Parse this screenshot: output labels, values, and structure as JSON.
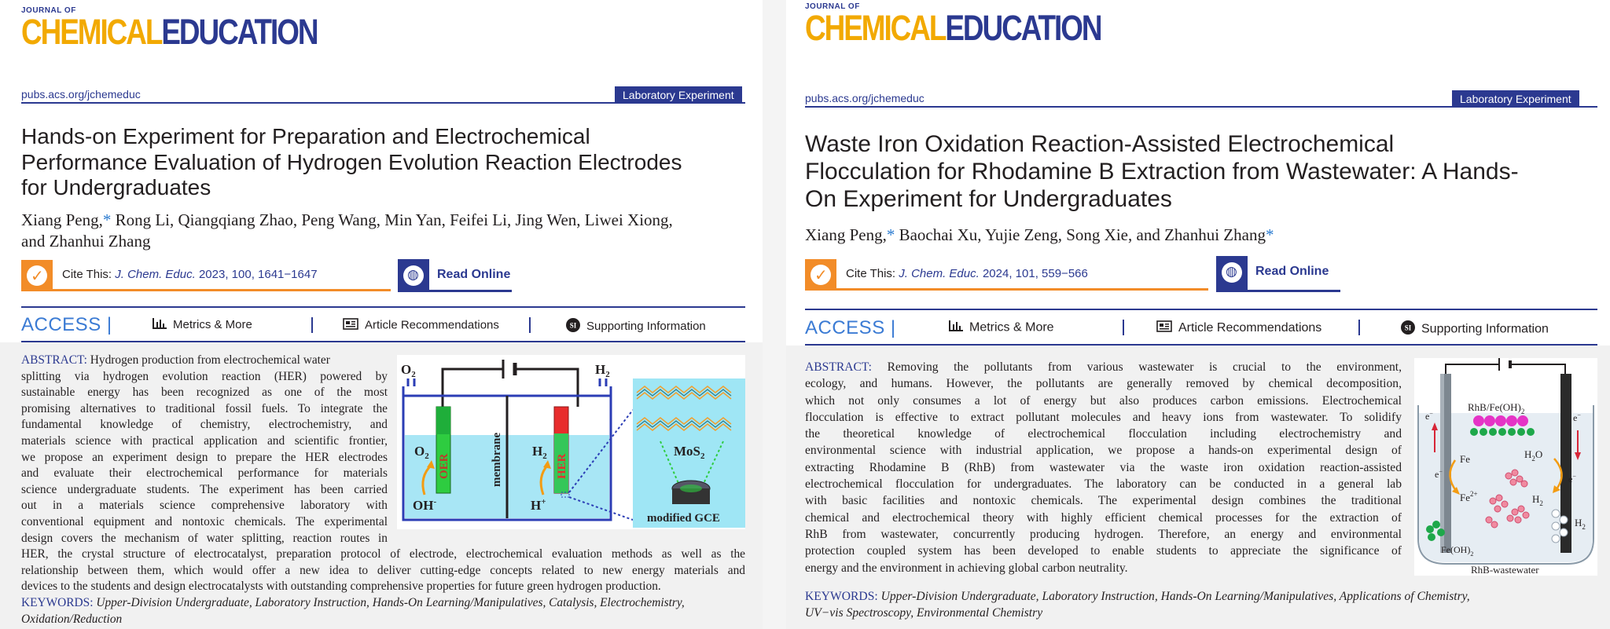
{
  "left": {
    "journal_small": "JOURNAL OF",
    "journal_chem": "CHEMICAL",
    "journal_edu": "EDUCATION",
    "url": "pubs.acs.org/jchemeduc",
    "badge": "Laboratory Experiment",
    "title_lines": [
      "Hands-on Experiment for Preparation and Electrochemical",
      "Performance Evaluation of Hydrogen Evolution Reaction Electrodes",
      "for Undergraduates"
    ],
    "authors_line1_a": "Xiang Peng,",
    "authors_line1_b": "Rong Li, Qiangqiang Zhao, Peng Wang, Min Yan, Feifei Li, Jing Wen, Liwei Xiong,",
    "authors_line2": "and Zhanhui Zhang",
    "cite_label": "Cite This:",
    "cite_ref": "J. Chem. Educ.",
    "cite_rest": "2023, 100, 1641−1647",
    "read_online": "Read Online",
    "access": "ACCESS",
    "metrics": "Metrics & More",
    "recs": "Article Recommendations",
    "si": "Supporting Information",
    "abstract_label": "ABSTRACT:",
    "abstract_lines": [
      "Hydrogen production from electrochemical water",
      "splitting via hydrogen evolution reaction (HER) powered by",
      "sustainable energy has been recognized as one of the most",
      "promising alternatives to traditional fossil fuels. To integrate the",
      "fundamental knowledge of chemistry, electrochemistry, and",
      "materials science with practical application and scientific frontier,",
      "we propose an experiment design to prepare the HER electrodes",
      "and evaluate their electrochemical performance for materials",
      "science undergraduate students. The experiment has been carried",
      "out in a materials science comprehensive laboratory with",
      "conventional equipment and nontoxic chemicals. The experimental",
      "design covers the mechanism of water splitting, reaction routes in"
    ],
    "abstract_full_lines": [
      "HER, the crystal structure of electrocatalyst, preparation protocol of electrode, electrochemical evaluation methods as well as the",
      "relationship between them, which would offer a new idea to deliver cutting-edge concepts related to new energy materials and",
      "devices to the students and design electrocatalysts with outstanding comprehensive properties for future green hydrogen production."
    ],
    "keywords_label": "KEYWORDS:",
    "keywords_line1": "Upper-Division Undergraduate, Laboratory Instruction, Hands-On Learning/Manipulatives, Catalysis, Electrochemistry,",
    "keywords_line2": "Oxidation/Reduction",
    "figure": {
      "o2_top": "O",
      "o2_top_sub": "2",
      "h2_top": "H",
      "h2_top_sub": "2",
      "o2_in": "O",
      "o2_in_sub": "2",
      "h2_in": "H",
      "h2_in_sub": "2",
      "oer": "OER",
      "her": "HER",
      "membrane": "membrane",
      "oh": "OH",
      "oh_sup": "-",
      "hplus": "H",
      "hplus_sup": "+",
      "mos2": "MoS",
      "mos2_sub": "2",
      "gce": "modified GCE"
    }
  },
  "right": {
    "journal_small": "JOURNAL OF",
    "journal_chem": "CHEMICAL",
    "journal_edu": "EDUCATION",
    "url": "pubs.acs.org/jchemeduc",
    "badge": "Laboratory Experiment",
    "title_lines": [
      "Waste Iron Oxidation Reaction-Assisted Electrochemical",
      "Flocculation for Rhodamine B Extraction from Wastewater: A Hands-",
      "On Experiment for Undergraduates"
    ],
    "authors_a": "Xiang Peng,",
    "authors_b": "Baochai Xu, Yujie Zeng, Song Xie, and Zhanhui Zhang",
    "cite_label": "Cite This:",
    "cite_ref": "J. Chem. Educ.",
    "cite_rest": "2024, 101, 559−566",
    "read_online": "Read Online",
    "access": "ACCESS",
    "metrics": "Metrics & More",
    "recs": "Article Recommendations",
    "si": "Supporting Information",
    "abstract_label": "ABSTRACT:",
    "abstract_lines": [
      "Removing the pollutants from various wastewater is crucial to the environment,",
      "ecology, and humans. However, the pollutants are generally removed by chemical decomposition,",
      "which not only consumes a lot of energy but also produces carbon emissions. Electrochemical",
      "flocculation is effective to extract pollutant molecules and heavy ions from wastewater. To solidify",
      "the theoretical knowledge of electrochemical flocculation including electrochemistry and",
      "environmental science with industrial application, we propose a hands-on experimental design of",
      "extracting Rhodamine B (RhB) from wastewater via the waste iron oxidation reaction-assisted",
      "electrochemical flocculation for undergraduates. The laboratory can be conducted in a general lab",
      "with basic facilities and nontoxic chemicals. The experimental design combines the traditional",
      "chemical and electrochemical theory with highly efficient chemical processes for the extraction of",
      "RhB from wastewater, concurrently producing hydrogen. Therefore, an energy and environmental",
      "protection coupled system has been developed to enable students to appreciate the significance of",
      "energy and the environment in achieving global carbon neutrality."
    ],
    "keywords_label": "KEYWORDS:",
    "keywords_line1": "Upper-Division Undergraduate, Laboratory Instruction, Hands-On Learning/Manipulatives, Applications of Chemistry,",
    "keywords_line2": "UV−vis Spectroscopy, Environmental Chemistry",
    "figure": {
      "rhb_fe": "RhB/Fe(OH)",
      "rhb_fe_sub": "2",
      "e1": "e",
      "e1_sup": "−",
      "e2": "e",
      "e2_sup": "−",
      "e3": "e",
      "e3_sup": "−",
      "e4": "e",
      "e4_sup": "−",
      "fe": "Fe",
      "fe2": "Fe",
      "fe2_sup": "2+",
      "h2o": "H",
      "h2o_sub": "2",
      "h2o_o": "O",
      "h2a": "H",
      "h2a_sub": "2",
      "h2b": "H",
      "h2b_sub": "2",
      "feoh": "Fe(OH)",
      "feoh_sub": "2",
      "rhb_ww": "RhB-wastewater"
    }
  }
}
